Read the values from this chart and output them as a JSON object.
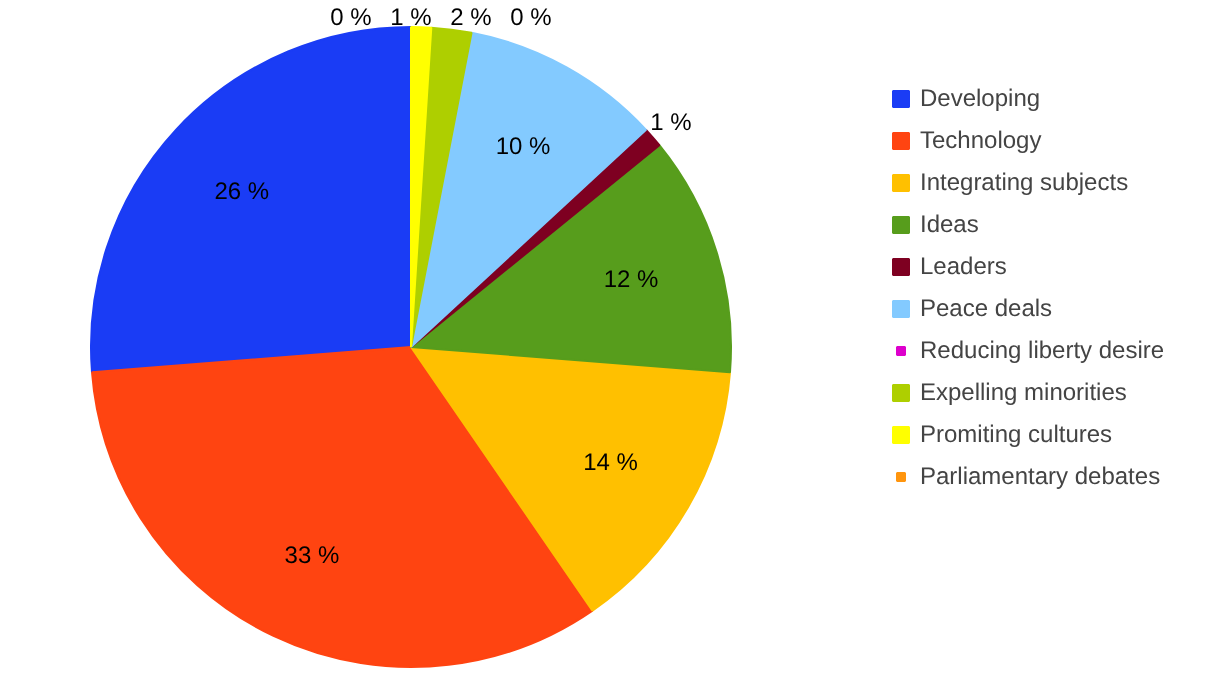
{
  "chart_data": {
    "type": "pie",
    "categories": [
      "Developing",
      "Technology",
      "Integrating subjects",
      "Ideas",
      "Leaders",
      "Peace deals",
      "Reducing liberty desire",
      "Expelling minorities",
      "Promiting cultures",
      "Parliamentary debates"
    ],
    "values": [
      26,
      33,
      14,
      12,
      1,
      10,
      0,
      2,
      1,
      0
    ],
    "value_labels": [
      "26 %",
      "33 %",
      "14 %",
      "12 %",
      "1 %",
      "10 %",
      "0 %",
      "2 %",
      "1 %",
      "0 %"
    ],
    "colors": [
      "#1a3cf5",
      "#ff4411",
      "#ffc000",
      "#579d1c",
      "#7e0021",
      "#83caff",
      "#dd00cc",
      "#aecf00",
      "#ffff00",
      "#ff950e"
    ],
    "legend": "right"
  }
}
